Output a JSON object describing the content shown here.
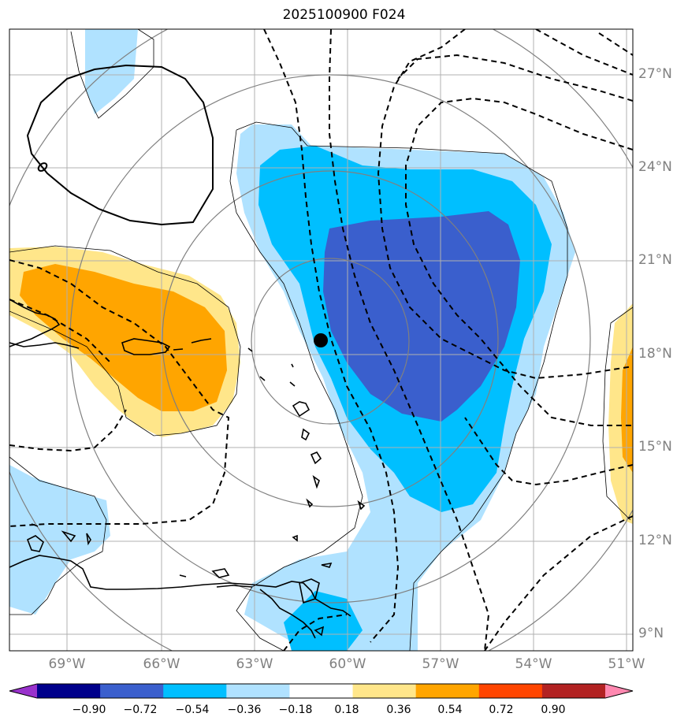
{
  "title": "2025100900 F024",
  "lat_labels": [
    "27°N",
    "24°N",
    "21°N",
    "18°N",
    "15°N",
    "12°N",
    "9°N"
  ],
  "lon_labels": [
    "69°W",
    "66°W",
    "63°W",
    "60°W",
    "57°W",
    "54°W",
    "51°W"
  ],
  "colorbar": {
    "ticks": [
      "−0.90",
      "−0.72",
      "−0.54",
      "−0.36",
      "−0.18",
      "0.18",
      "0.36",
      "0.54",
      "0.72",
      "0.90"
    ],
    "colors": [
      "#9932cc",
      "#00008b",
      "#3a5fcd",
      "#00bfff",
      "#b0e2ff",
      "#ffffff",
      "#ffe68a",
      "#ffa500",
      "#ff4500",
      "#b22222",
      "#ff88b0"
    ]
  },
  "storm_center": {
    "lat": 18.4,
    "lon": -60.8
  }
}
